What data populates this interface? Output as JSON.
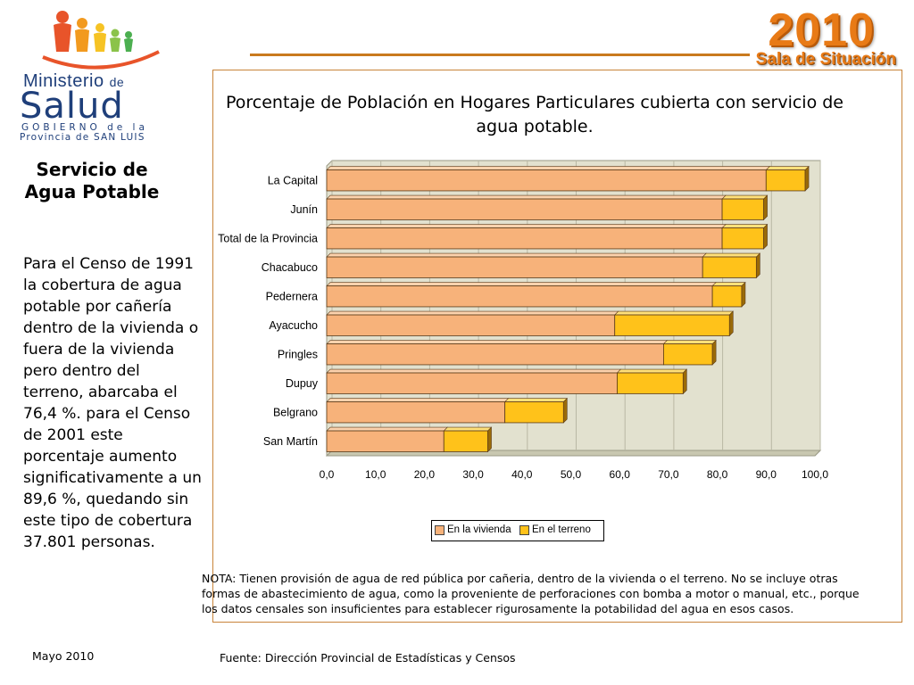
{
  "header": {
    "ministerio": "Ministerio",
    "de": "de",
    "salud": "Salud",
    "gobierno": "GOBIERNO de la",
    "provincia": "Provincia de SAN LUIS",
    "year": "2010",
    "sala": "Sala de Situación"
  },
  "sidebar": {
    "title": "Servicio de Agua Potable",
    "body": "Para el Censo de 1991 la cobertura de agua potable por cañería dentro de la vivienda o fuera de la vivienda pero dentro del terreno, abarcaba el 76,4 %. para el Censo de 2001 este porcentaje aumento significativamente a un 89,6 %, quedando sin este tipo de cobertura 37.801 personas."
  },
  "chart_title": "Porcentaje de Población en Hogares Particulares cubierta con servicio de agua potable.",
  "note": "NOTA: Tienen provisión de agua de red pública por cañeria, dentro de la vivienda o el terreno. No se incluye  otras formas de abastecimiento de agua, como la proveniente de perforaciones con bomba a motor o manual, etc., porque los datos censales son insuficientes para establecer rigurosamente la potabilidad del agua en esos casos.",
  "source": "Fuente: Dirección Provincial de Estadísticas y Censos",
  "date": "Mayo  2010",
  "colors": {
    "vivienda": "#f7b27a",
    "terreno": "#ffc21a",
    "accent": "#e87a16",
    "frame": "#c8843a"
  },
  "chart_data": {
    "type": "bar",
    "orientation": "horizontal",
    "stacked": true,
    "categories": [
      "La Capital",
      "Junín",
      "Total de la Provincia",
      "Chacabuco",
      "Pedernera",
      "Ayacucho",
      "Pringles",
      "Dupuy",
      "Belgrano",
      "San Martín"
    ],
    "series": [
      {
        "name": "En la  vivienda",
        "values": [
          90.0,
          81.0,
          81.0,
          77.0,
          79.0,
          59.0,
          69.0,
          59.5,
          36.5,
          24.0
        ]
      },
      {
        "name": "En el  terreno",
        "values": [
          8.0,
          8.5,
          8.5,
          11.0,
          6.0,
          23.5,
          10.0,
          13.5,
          12.0,
          9.0
        ]
      }
    ],
    "xlim": [
      0,
      100
    ],
    "xticks": [
      "0,0",
      "10,0",
      "20,0",
      "30,0",
      "40,0",
      "50,0",
      "60,0",
      "70,0",
      "80,0",
      "90,0",
      "100,0"
    ],
    "grid": true,
    "legend": "bottom"
  }
}
